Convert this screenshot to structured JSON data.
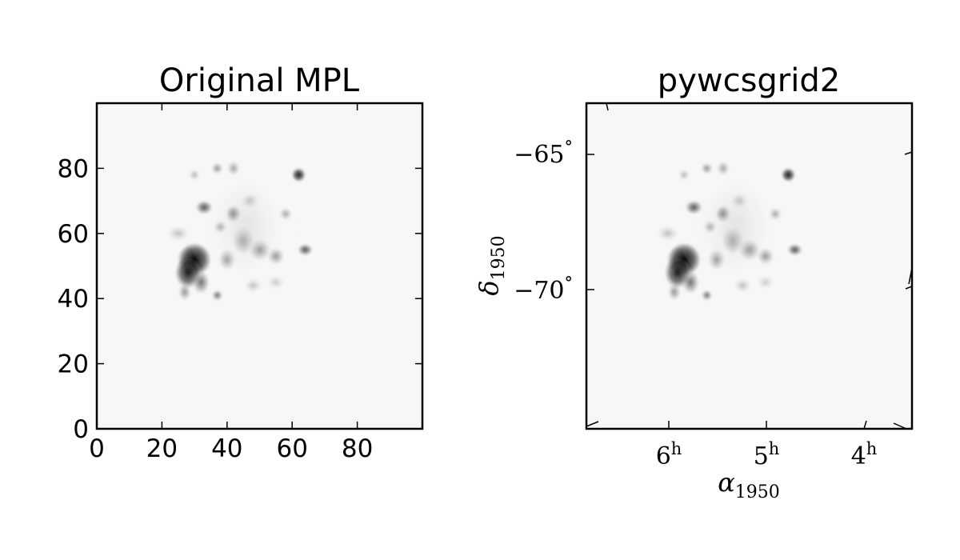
{
  "chart_data": [
    {
      "type": "heatmap",
      "title": "Original MPL",
      "colormap": "grayscale (white = low, black = high)",
      "grid": false,
      "xlim": [
        0,
        100
      ],
      "ylim": [
        0,
        100
      ],
      "x_ticks": [
        {
          "value": 0,
          "label": "0"
        },
        {
          "value": 20,
          "label": "20"
        },
        {
          "value": 40,
          "label": "40"
        },
        {
          "value": 60,
          "label": "60"
        },
        {
          "value": 80,
          "label": "80"
        }
      ],
      "y_ticks": [
        {
          "value": 0,
          "label": "0"
        },
        {
          "value": 20,
          "label": "20"
        },
        {
          "value": 40,
          "label": "40"
        },
        {
          "value": 60,
          "label": "60"
        },
        {
          "value": 80,
          "label": "80"
        }
      ],
      "blobs": [
        {
          "x": 30,
          "y": 52,
          "sx": 3.2,
          "sy": 3.2,
          "v": 1.0
        },
        {
          "x": 28,
          "y": 48,
          "sx": 2.4,
          "sy": 3.0,
          "v": 0.9
        },
        {
          "x": 32,
          "y": 45,
          "sx": 1.6,
          "sy": 2.2,
          "v": 0.6
        },
        {
          "x": 27,
          "y": 42,
          "sx": 1.2,
          "sy": 1.6,
          "v": 0.5
        },
        {
          "x": 33,
          "y": 68,
          "sx": 1.6,
          "sy": 1.3,
          "v": 0.7
        },
        {
          "x": 42,
          "y": 66,
          "sx": 1.4,
          "sy": 1.6,
          "v": 0.7
        },
        {
          "x": 38,
          "y": 62,
          "sx": 1.2,
          "sy": 1.2,
          "v": 0.5
        },
        {
          "x": 45,
          "y": 58,
          "sx": 2.0,
          "sy": 2.6,
          "v": 0.6
        },
        {
          "x": 50,
          "y": 55,
          "sx": 2.0,
          "sy": 2.0,
          "v": 0.55
        },
        {
          "x": 55,
          "y": 53,
          "sx": 1.6,
          "sy": 1.6,
          "v": 0.5
        },
        {
          "x": 40,
          "y": 52,
          "sx": 1.6,
          "sy": 2.0,
          "v": 0.5
        },
        {
          "x": 62,
          "y": 78,
          "sx": 1.3,
          "sy": 1.3,
          "v": 0.9
        },
        {
          "x": 64,
          "y": 55,
          "sx": 1.4,
          "sy": 1.1,
          "v": 0.7
        },
        {
          "x": 58,
          "y": 66,
          "sx": 1.2,
          "sy": 1.2,
          "v": 0.45
        },
        {
          "x": 37,
          "y": 80,
          "sx": 1.1,
          "sy": 1.1,
          "v": 0.5
        },
        {
          "x": 42,
          "y": 80,
          "sx": 1.2,
          "sy": 1.4,
          "v": 0.45
        },
        {
          "x": 30,
          "y": 78,
          "sx": 1.0,
          "sy": 1.0,
          "v": 0.4
        },
        {
          "x": 37,
          "y": 41,
          "sx": 1.0,
          "sy": 1.0,
          "v": 0.6
        },
        {
          "x": 48,
          "y": 44,
          "sx": 1.6,
          "sy": 1.3,
          "v": 0.35
        },
        {
          "x": 55,
          "y": 45,
          "sx": 1.6,
          "sy": 1.3,
          "v": 0.3
        },
        {
          "x": 47,
          "y": 70,
          "sx": 1.6,
          "sy": 1.4,
          "v": 0.4
        },
        {
          "x": 25,
          "y": 60,
          "sx": 2.0,
          "sy": 1.4,
          "v": 0.35
        },
        {
          "x": 46,
          "y": 62,
          "sx": 6.0,
          "sy": 9.0,
          "v": 0.2
        },
        {
          "x": 45,
          "y": 62,
          "sx": 14.0,
          "sy": 14.0,
          "v": 0.08
        }
      ]
    },
    {
      "type": "heatmap",
      "title": "pywcsgrid2",
      "colormap": "grayscale (white = low, black = high)",
      "grid": false,
      "xlabel": "α",
      "xlabel_sub": "1950",
      "ylabel": "δ",
      "ylabel_sub": "1950",
      "y_ticks": [
        {
          "value": -65,
          "label": "−65",
          "unit": "°"
        },
        {
          "value": -70,
          "label": "−70",
          "unit": "°"
        }
      ],
      "x_ticks": [
        {
          "value": 6,
          "label": "6",
          "unit": "h"
        },
        {
          "value": 5,
          "label": "5",
          "unit": "h"
        },
        {
          "value": 4,
          "label": "4",
          "unit": "h"
        }
      ]
    }
  ]
}
